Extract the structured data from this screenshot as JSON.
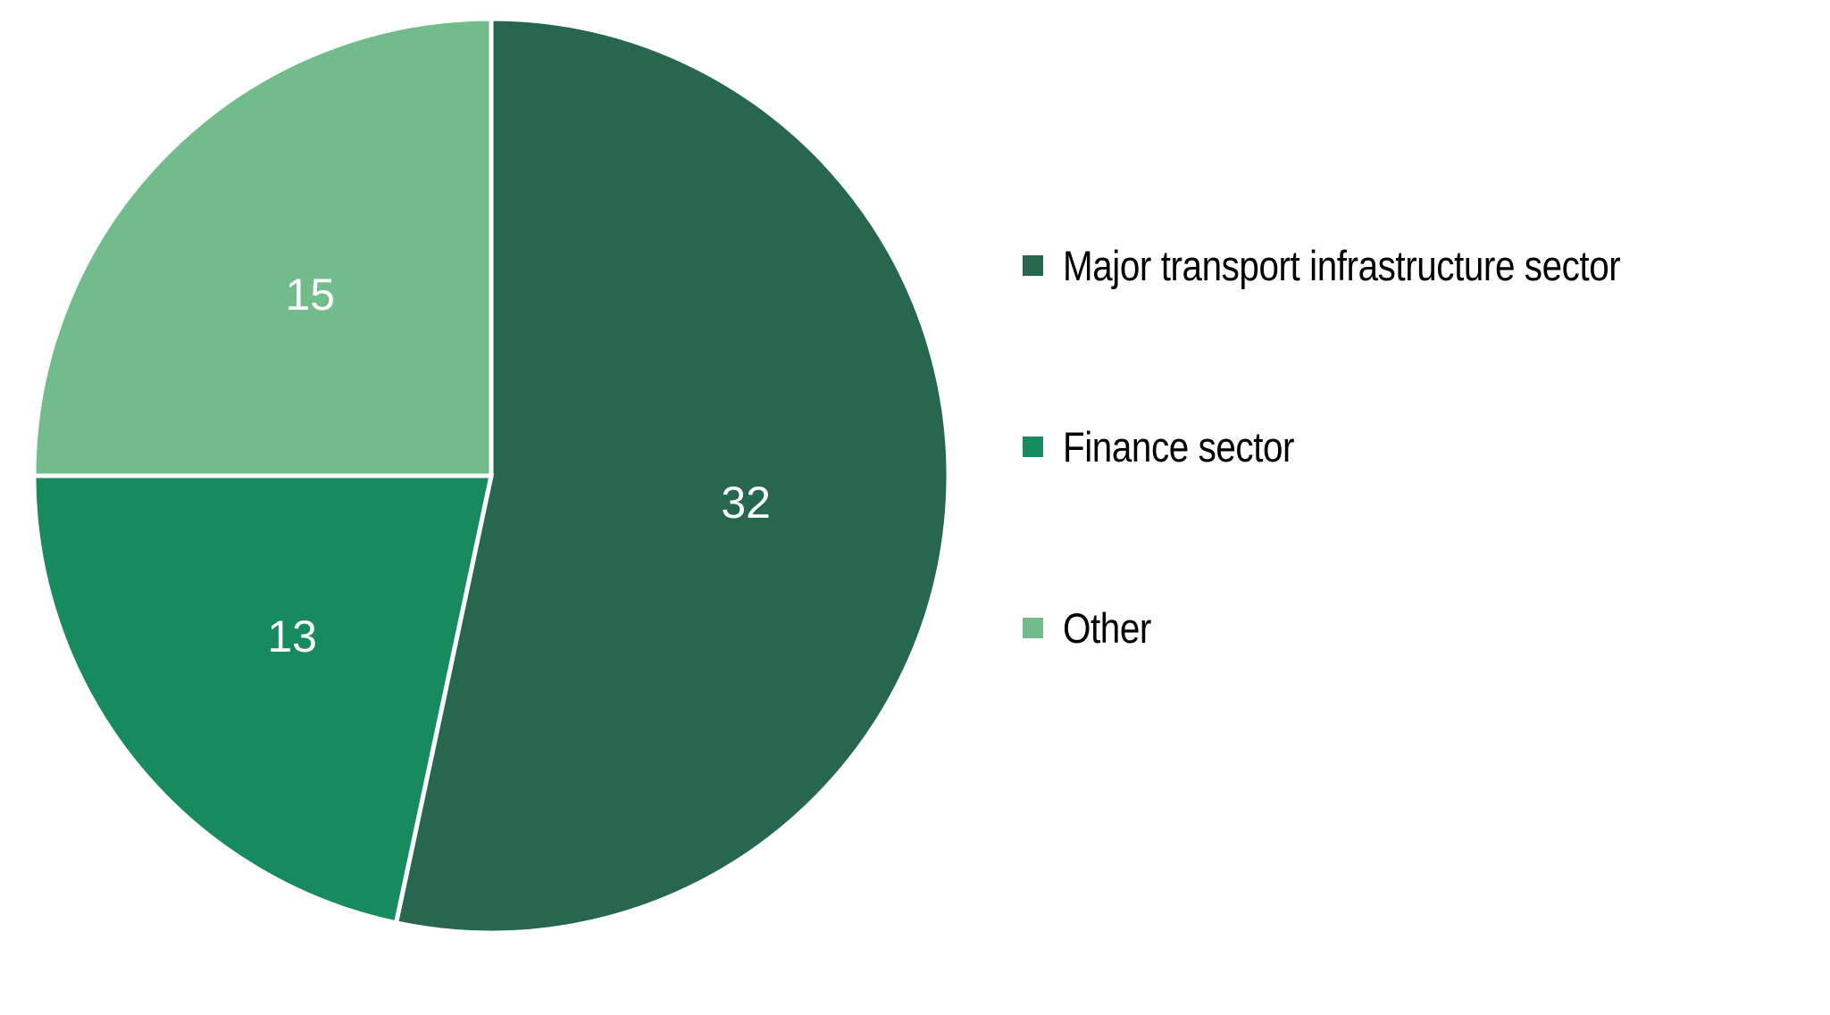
{
  "chart_data": {
    "type": "pie",
    "title": "",
    "categories": [
      "Major transport infrastructure sector",
      "Finance sector",
      "Other"
    ],
    "values": [
      32,
      13,
      15
    ],
    "colors": [
      "#276750",
      "#178A5E",
      "#72BB8A"
    ],
    "data_labels": [
      "32",
      "13",
      "15"
    ],
    "start_angle_deg": 0,
    "direction": "clockwise",
    "legend": {
      "position": "right",
      "entries": [
        "Major transport infrastructure sector",
        "Finance sector",
        "Other"
      ]
    }
  },
  "legend": {
    "items": [
      {
        "label": "Major transport infrastructure sector",
        "color": "#276750"
      },
      {
        "label": "Finance sector",
        "color": "#178A5E"
      },
      {
        "label": "Other",
        "color": "#72BB8A"
      }
    ]
  },
  "labels": {
    "slice0": "32",
    "slice1": "13",
    "slice2": "15"
  }
}
